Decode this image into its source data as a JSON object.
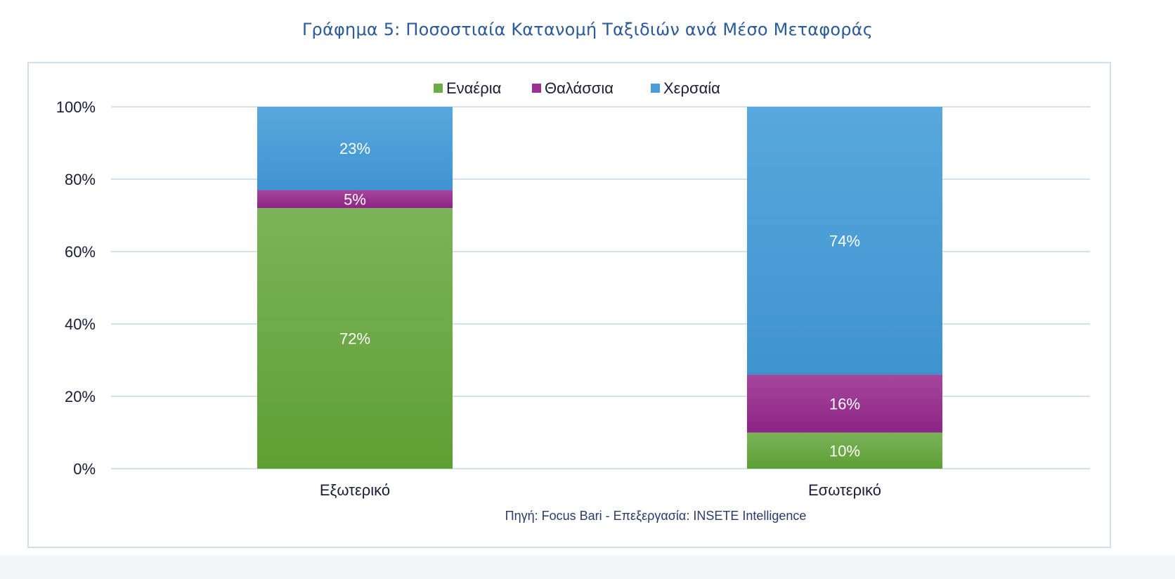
{
  "title": "Γράφημα 5: Ποσοστιαία Κατανομή Ταξιδιών ανά Μέσο Μεταφοράς",
  "source": "Πηγή: Focus Bari - Επεξεργασία: INSETE Intelligence",
  "chart_data": {
    "type": "bar",
    "stacked": true,
    "categories": [
      "Εξωτερικό",
      "Εσωτερικό"
    ],
    "series": [
      {
        "name": "Εναέρια",
        "values": [
          72,
          10
        ],
        "labels": [
          "72%",
          "10%"
        ],
        "color": "#6aad47"
      },
      {
        "name": "Θαλάσσια",
        "values": [
          5,
          16
        ],
        "labels": [
          "5%",
          "16%"
        ],
        "color": "#9b2f93"
      },
      {
        "name": "Χερσαία",
        "values": [
          23,
          74
        ],
        "labels": [
          "23%",
          "74%"
        ],
        "color": "#479ed8"
      }
    ],
    "yticks": [
      "0%",
      "20%",
      "40%",
      "60%",
      "80%",
      "100%"
    ],
    "ylim": [
      0,
      100
    ],
    "grid": true,
    "legend_position": "top"
  }
}
